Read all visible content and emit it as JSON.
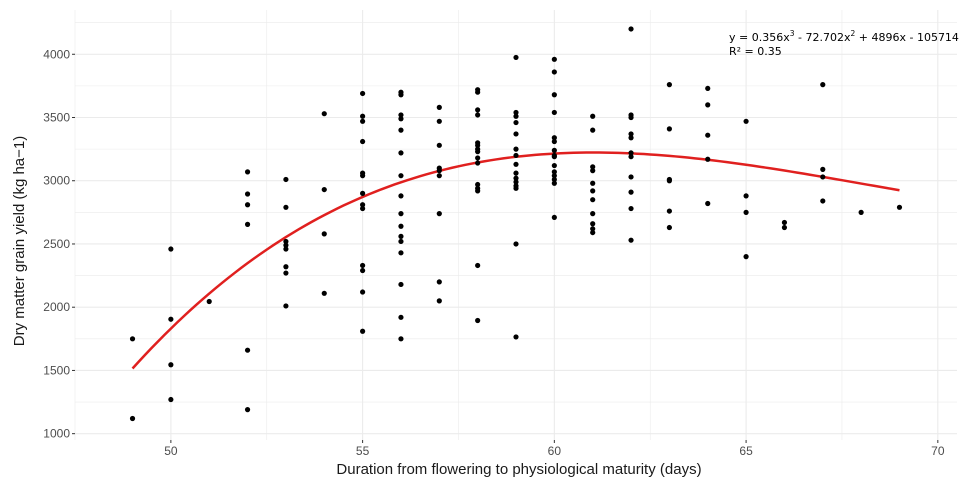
{
  "chart_data": {
    "type": "scatter",
    "xlabel": "Duration from flowering to physiological maturity (days)",
    "ylabel": "Dry matter grain yield (kg ha−1)",
    "xlim": [
      47.5,
      70.5
    ],
    "ylim": [
      950,
      4350
    ],
    "x_ticks": [
      50,
      55,
      60,
      65,
      70
    ],
    "y_ticks": [
      1000,
      1500,
      2000,
      2500,
      3000,
      3500,
      4000
    ],
    "grid": true,
    "legend": "none",
    "colors": {
      "points": "#000000",
      "fit_line": "#e0201f",
      "grid": "#ebebeb"
    },
    "annotation": {
      "eq_prefix": "y = 0.356x",
      "eq_exp1": "3",
      "eq_mid": " - 72.702x",
      "eq_exp2": "2",
      "eq_suffix": " + 4896x - 105714",
      "r2": "R² = 0.35"
    },
    "fit": {
      "coefficients": [
        0.356,
        -72.702,
        4896,
        -105714
      ],
      "x_range": [
        49,
        69
      ]
    },
    "points": [
      [
        49,
        1750
      ],
      [
        49,
        1120
      ],
      [
        50,
        2460
      ],
      [
        50,
        1905
      ],
      [
        50,
        1545
      ],
      [
        50,
        1270
      ],
      [
        51,
        2045
      ],
      [
        52,
        3070
      ],
      [
        52,
        2895
      ],
      [
        52,
        2810
      ],
      [
        52,
        2655
      ],
      [
        52,
        1660
      ],
      [
        52,
        1190
      ],
      [
        53,
        3010
      ],
      [
        53,
        2790
      ],
      [
        53,
        2520
      ],
      [
        53,
        2490
      ],
      [
        53,
        2460
      ],
      [
        53,
        2320
      ],
      [
        53,
        2270
      ],
      [
        53,
        2010
      ],
      [
        54,
        3530
      ],
      [
        54,
        2930
      ],
      [
        54,
        2580
      ],
      [
        54,
        2110
      ],
      [
        55,
        3690
      ],
      [
        55,
        3510
      ],
      [
        55,
        3470
      ],
      [
        55,
        3310
      ],
      [
        55,
        3060
      ],
      [
        55,
        3040
      ],
      [
        55,
        2900
      ],
      [
        55,
        2810
      ],
      [
        55,
        2780
      ],
      [
        55,
        2330
      ],
      [
        55,
        2290
      ],
      [
        55,
        2120
      ],
      [
        55,
        1810
      ],
      [
        56,
        3700
      ],
      [
        56,
        3680
      ],
      [
        56,
        3520
      ],
      [
        56,
        3490
      ],
      [
        56,
        3400
      ],
      [
        56,
        3220
      ],
      [
        56,
        3040
      ],
      [
        56,
        2880
      ],
      [
        56,
        2740
      ],
      [
        56,
        2640
      ],
      [
        56,
        2560
      ],
      [
        56,
        2520
      ],
      [
        56,
        2430
      ],
      [
        56,
        2180
      ],
      [
        56,
        1920
      ],
      [
        56,
        1750
      ],
      [
        57,
        3580
      ],
      [
        57,
        3470
      ],
      [
        57,
        3280
      ],
      [
        57,
        3100
      ],
      [
        57,
        3080
      ],
      [
        57,
        3040
      ],
      [
        57,
        2740
      ],
      [
        57,
        2200
      ],
      [
        57,
        2050
      ],
      [
        58,
        3720
      ],
      [
        58,
        3700
      ],
      [
        58,
        3560
      ],
      [
        58,
        3520
      ],
      [
        58,
        3300
      ],
      [
        58,
        3280
      ],
      [
        58,
        3250
      ],
      [
        58,
        3230
      ],
      [
        58,
        3180
      ],
      [
        58,
        3140
      ],
      [
        58,
        2970
      ],
      [
        58,
        2940
      ],
      [
        58,
        2920
      ],
      [
        58,
        2330
      ],
      [
        58,
        1895
      ],
      [
        59,
        3975
      ],
      [
        59,
        3540
      ],
      [
        59,
        3510
      ],
      [
        59,
        3460
      ],
      [
        59,
        3370
      ],
      [
        59,
        3250
      ],
      [
        59,
        3200
      ],
      [
        59,
        3130
      ],
      [
        59,
        3060
      ],
      [
        59,
        3020
      ],
      [
        59,
        2990
      ],
      [
        59,
        2960
      ],
      [
        59,
        2940
      ],
      [
        59,
        2500
      ],
      [
        59,
        1765
      ],
      [
        60,
        3960
      ],
      [
        60,
        3860
      ],
      [
        60,
        3680
      ],
      [
        60,
        3540
      ],
      [
        60,
        3340
      ],
      [
        60,
        3310
      ],
      [
        60,
        3240
      ],
      [
        60,
        3200
      ],
      [
        60,
        3190
      ],
      [
        60,
        3120
      ],
      [
        60,
        3070
      ],
      [
        60,
        3040
      ],
      [
        60,
        3010
      ],
      [
        60,
        2980
      ],
      [
        60,
        2710
      ],
      [
        61,
        3510
      ],
      [
        61,
        3400
      ],
      [
        61,
        3110
      ],
      [
        61,
        3080
      ],
      [
        61,
        2980
      ],
      [
        61,
        2920
      ],
      [
        61,
        2850
      ],
      [
        61,
        2740
      ],
      [
        61,
        2660
      ],
      [
        61,
        2620
      ],
      [
        61,
        2590
      ],
      [
        62,
        4200
      ],
      [
        62,
        3520
      ],
      [
        62,
        3500
      ],
      [
        62,
        3370
      ],
      [
        62,
        3340
      ],
      [
        62,
        3220
      ],
      [
        62,
        3190
      ],
      [
        62,
        3030
      ],
      [
        62,
        2910
      ],
      [
        62,
        2780
      ],
      [
        62,
        2530
      ],
      [
        63,
        3760
      ],
      [
        63,
        3410
      ],
      [
        63,
        3010
      ],
      [
        63,
        3000
      ],
      [
        63,
        2760
      ],
      [
        63,
        2630
      ],
      [
        64,
        3730
      ],
      [
        64,
        3600
      ],
      [
        64,
        3360
      ],
      [
        64,
        3170
      ],
      [
        64,
        2820
      ],
      [
        65,
        3470
      ],
      [
        65,
        2880
      ],
      [
        65,
        2750
      ],
      [
        65,
        2400
      ],
      [
        66,
        2670
      ],
      [
        66,
        2630
      ],
      [
        67,
        3760
      ],
      [
        67,
        3090
      ],
      [
        67,
        3030
      ],
      [
        67,
        2840
      ],
      [
        68,
        2750
      ],
      [
        69,
        2790
      ]
    ]
  }
}
